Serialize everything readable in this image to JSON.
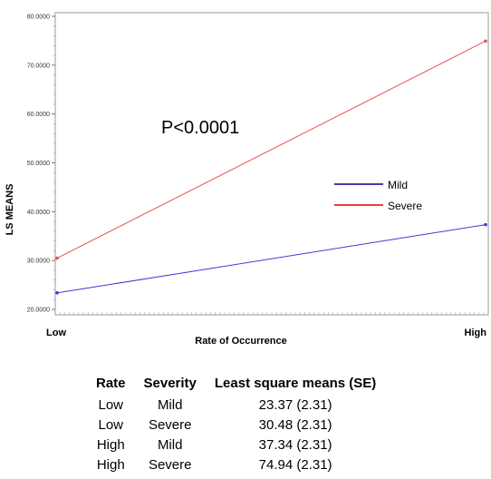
{
  "chart_data": {
    "type": "line",
    "annotation": "P<0.0001",
    "xlabel": "Rate of Occurrence",
    "ylabel": "LS MEANS",
    "categories": [
      "Low",
      "High"
    ],
    "yticks": [
      "20.0000",
      "30.0000",
      "40.0000",
      "50.0000",
      "60.0000",
      "70.0000",
      "80.0000"
    ],
    "ylim": [
      20,
      80
    ],
    "legend_position": "right",
    "series": [
      {
        "name": "Mild",
        "color": "#3b3bd6",
        "legend_color": "#000080",
        "values": [
          23.37,
          37.34
        ]
      },
      {
        "name": "Severe",
        "color": "#e85050",
        "legend_color": "#e00000",
        "values": [
          30.48,
          74.94
        ]
      }
    ]
  },
  "table": {
    "headers": [
      "Rate",
      "Severity",
      "Least square means (SE)"
    ],
    "rows": [
      [
        "Low",
        "Mild",
        "23.37 (2.31)"
      ],
      [
        "Low",
        "Severe",
        "30.48 (2.31)"
      ],
      [
        "High",
        "Mild",
        "37.34 (2.31)"
      ],
      [
        "High",
        "Severe",
        "74.94 (2.31)"
      ]
    ]
  }
}
